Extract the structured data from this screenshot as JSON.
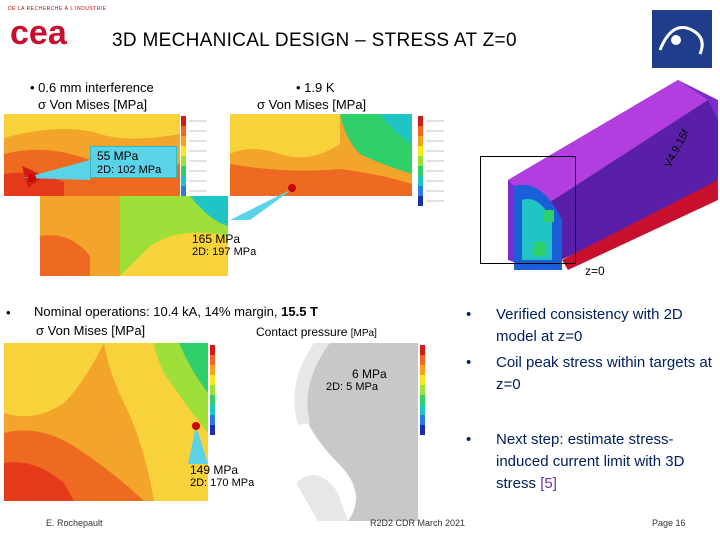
{
  "header": {
    "logo_small_text": "DE LA RECHERCHE À L'INDUSTRIE",
    "logo_text": "cea",
    "title": "3D MECHANICAL DESIGN – STRESS AT Z=0"
  },
  "top_left": {
    "bullet": "• 0.6 mm interference",
    "label": "σ Von Mises [MPa]",
    "callout_main": "55 MPa",
    "callout_sub": "2D: 102 MPa"
  },
  "top_mid": {
    "bullet": "• 1.9 K",
    "label": "σ Von Mises [MPa]",
    "callout_main": "165 MPa",
    "callout_sub": "2D: 197 MPa"
  },
  "model": {
    "section_label": "z=0",
    "version_text": "V4.9.15f"
  },
  "bottom": {
    "bullet_marker": "•",
    "bullet": "Nominal operations: 10.4 kA, 14% margin, ",
    "bullet_bold": "15.5 T",
    "label_left": "σ Von Mises [MPa]",
    "label_right": "Contact pressure",
    "label_right_unit": "[MPa]",
    "callout_a_main": "6 MPa",
    "callout_a_sub": "2D: 5 MPa",
    "callout_b_main": "149 MPa",
    "callout_b_sub": "2D: 170 MPa"
  },
  "right_bullets": [
    {
      "marker": "•",
      "text": "Verified consistency with 2D model at z=0"
    },
    {
      "marker": "•",
      "text": "Coil peak stress within targets at z=0"
    },
    {
      "marker": "•",
      "text": "Next step: estimate stress-induced current limit with 3D stress ",
      "ref": "[5]"
    }
  ],
  "footer": {
    "author": "E. Rochepault",
    "event": "R2D2 CDR March 2021",
    "page": "Page 16"
  },
  "colors": {
    "title_navy": "#002060",
    "callout_cyan": "#5ad2e8",
    "logo_red": "#c8102e",
    "logo_navy": "#1f3d8a"
  }
}
